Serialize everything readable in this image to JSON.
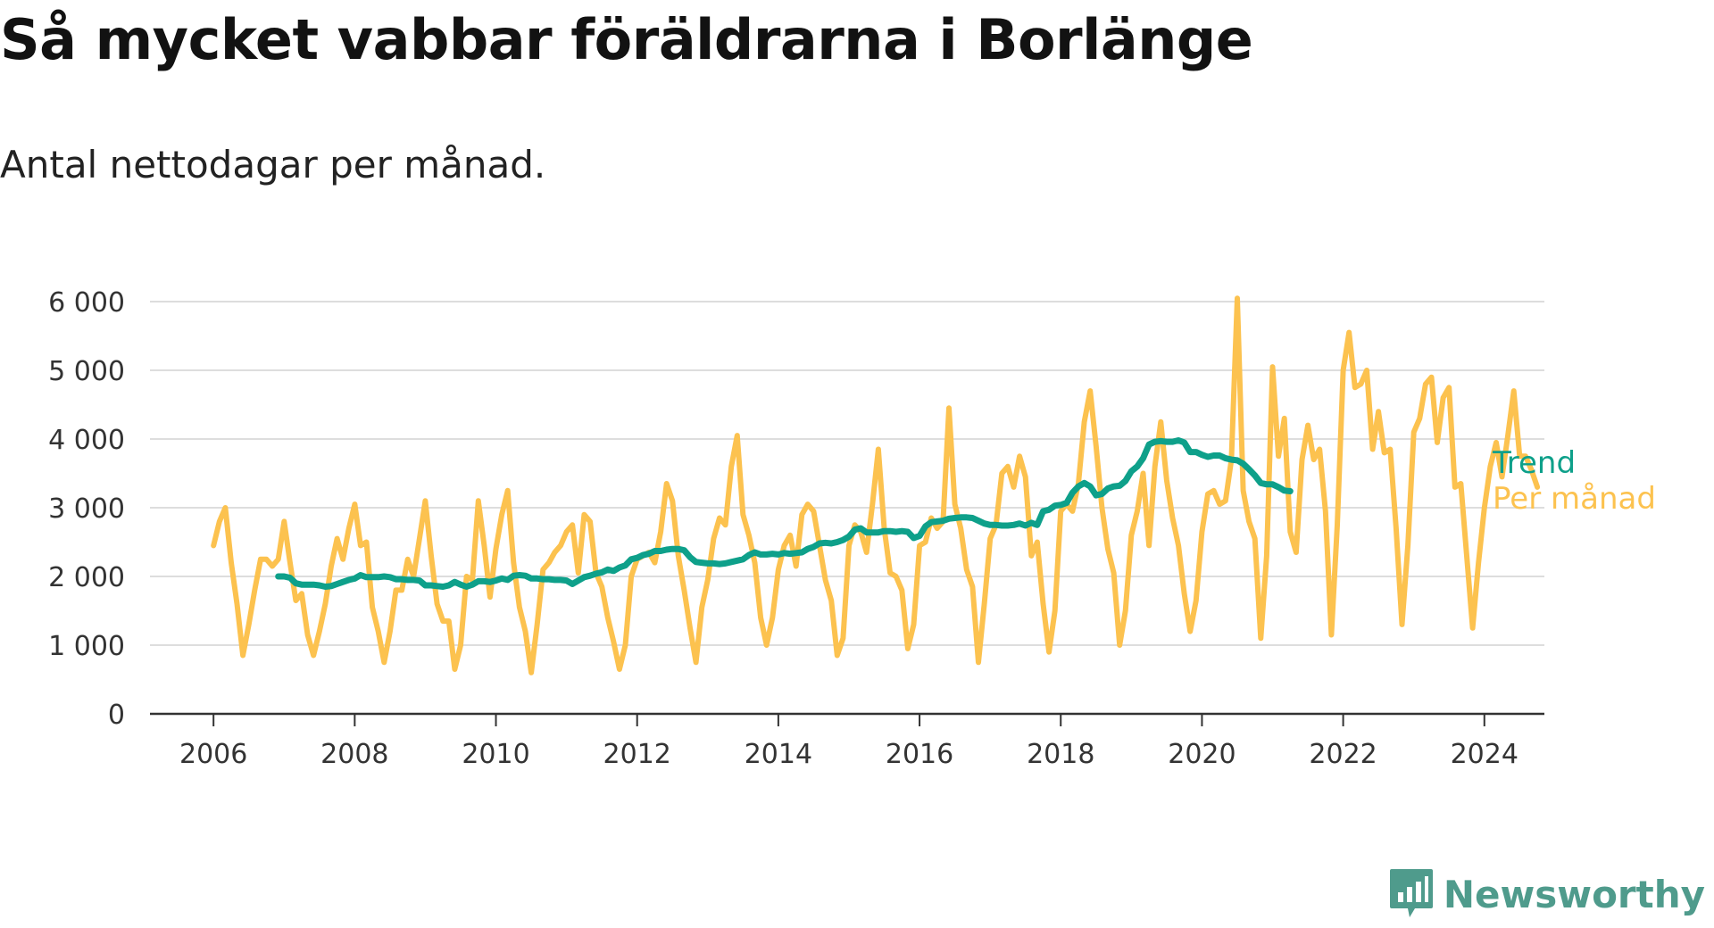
{
  "title": "Så mycket vabbar föräldrarna i Borlänge",
  "subtitle": "Antal nettodagar per månad.",
  "brand": {
    "name": "Newsworthy",
    "icon": "newsworthy-logo-icon",
    "color": "#4f9b8c"
  },
  "colors": {
    "per_manad": "#fcc24f",
    "trend": "#0ea08a",
    "grid": "#dddddd",
    "axis": "#333333"
  },
  "chart_data": {
    "type": "line",
    "title": "Så mycket vabbar föräldrarna i Borlänge",
    "subtitle": "Antal nettodagar per månad.",
    "xlabel": "",
    "ylabel": "",
    "xlim": [
      2005.1,
      2024.85
    ],
    "ylim": [
      0,
      6000
    ],
    "xticks": [
      "2006",
      "2008",
      "2010",
      "2012",
      "2014",
      "2016",
      "2018",
      "2020",
      "2022",
      "2024"
    ],
    "yticks": [
      "0",
      "1 000",
      "2 000",
      "3 000",
      "4 000",
      "5 000",
      "6 000"
    ],
    "grid": "horizontal",
    "legend": "right end of lines",
    "series": [
      {
        "name": "Per månad",
        "color": "#fcc24f",
        "start": "2006-01",
        "frequency": "monthly",
        "values": [
          2450,
          2800,
          3000,
          2200,
          1600,
          850,
          1300,
          1800,
          2250,
          2250,
          2150,
          2250,
          2800,
          2200,
          1650,
          1750,
          1150,
          850,
          1200,
          1600,
          2150,
          2550,
          2250,
          2700,
          3050,
          2450,
          2500,
          1550,
          1200,
          750,
          1200,
          1800,
          1800,
          2250,
          2000,
          2550,
          3100,
          2300,
          1600,
          1350,
          1350,
          650,
          1000,
          2000,
          1950,
          3100,
          2450,
          1700,
          2400,
          2900,
          3250,
          2200,
          1550,
          1200,
          600,
          1300,
          2100,
          2200,
          2350,
          2450,
          2650,
          2750,
          2050,
          2900,
          2800,
          2050,
          1850,
          1400,
          1050,
          650,
          1000,
          2000,
          2250,
          2300,
          2350,
          2200,
          2650,
          3350,
          3100,
          2300,
          1800,
          1250,
          750,
          1550,
          1950,
          2550,
          2850,
          2750,
          3600,
          4050,
          2900,
          2600,
          2200,
          1400,
          1000,
          1400,
          2100,
          2450,
          2600,
          2150,
          2900,
          3050,
          2950,
          2450,
          1950,
          1650,
          850,
          1100,
          2450,
          2750,
          2650,
          2350,
          3050,
          3850,
          2700,
          2050,
          2000,
          1800,
          950,
          1300,
          2450,
          2500,
          2850,
          2700,
          2800,
          4450,
          3050,
          2700,
          2100,
          1850,
          750,
          1600,
          2550,
          2750,
          3500,
          3600,
          3300,
          3750,
          3450,
          2300,
          2500,
          1600,
          900,
          1500,
          2950,
          3050,
          2950,
          3350,
          4250,
          4700,
          3900,
          3000,
          2400,
          2050,
          1000,
          1500,
          2600,
          2950,
          3500,
          2450,
          3600,
          4250,
          3400,
          2850,
          2450,
          1750,
          1200,
          1650,
          2650,
          3200,
          3250,
          3050,
          3100,
          3700,
          6050,
          3250,
          2800,
          2550,
          1100,
          2300,
          5050,
          3750,
          4300,
          2650,
          2350,
          3700,
          4200,
          3700,
          3850,
          2950,
          1150,
          2750,
          5000,
          5550,
          4750,
          4800,
          5000,
          3850,
          4400,
          3800,
          3850,
          2700,
          1300,
          2450,
          4100,
          4300,
          4800,
          4900,
          3950,
          4600,
          4750,
          3300,
          3350,
          2300,
          1250,
          2200,
          3000,
          3600,
          3950,
          3450,
          4050,
          4700,
          3750,
          3750,
          3550,
          3300
        ]
      },
      {
        "name": "Trend",
        "color": "#0ea08a",
        "start": "2006-12",
        "frequency": "monthly",
        "values": [
          2000,
          2000,
          1980,
          1900,
          1880,
          1880,
          1880,
          1870,
          1850,
          1860,
          1890,
          1920,
          1950,
          1970,
          2020,
          1990,
          1990,
          1990,
          2000,
          1990,
          1960,
          1960,
          1950,
          1950,
          1940,
          1870,
          1870,
          1860,
          1850,
          1870,
          1920,
          1880,
          1850,
          1880,
          1930,
          1930,
          1920,
          1940,
          1970,
          1950,
          2010,
          2020,
          2010,
          1970,
          1970,
          1960,
          1960,
          1950,
          1950,
          1940,
          1890,
          1940,
          1990,
          2010,
          2040,
          2060,
          2100,
          2080,
          2130,
          2160,
          2250,
          2270,
          2310,
          2330,
          2370,
          2370,
          2390,
          2400,
          2400,
          2380,
          2280,
          2210,
          2200,
          2190,
          2190,
          2180,
          2190,
          2210,
          2230,
          2250,
          2310,
          2350,
          2320,
          2320,
          2330,
          2320,
          2340,
          2330,
          2340,
          2350,
          2400,
          2430,
          2480,
          2490,
          2480,
          2500,
          2530,
          2580,
          2680,
          2700,
          2640,
          2640,
          2640,
          2660,
          2660,
          2650,
          2660,
          2650,
          2560,
          2590,
          2730,
          2790,
          2800,
          2810,
          2840,
          2850,
          2860,
          2860,
          2850,
          2810,
          2770,
          2750,
          2750,
          2740,
          2740,
          2750,
          2770,
          2740,
          2780,
          2750,
          2950,
          2970,
          3030,
          3040,
          3070,
          3220,
          3310,
          3360,
          3310,
          3180,
          3200,
          3280,
          3310,
          3320,
          3390,
          3530,
          3600,
          3720,
          3920,
          3960,
          3970,
          3960,
          3960,
          3980,
          3950,
          3810,
          3810,
          3770,
          3740,
          3760,
          3760,
          3720,
          3700,
          3690,
          3640,
          3560,
          3470,
          3360,
          3340,
          3340,
          3300,
          3250,
          3240
        ]
      }
    ]
  }
}
